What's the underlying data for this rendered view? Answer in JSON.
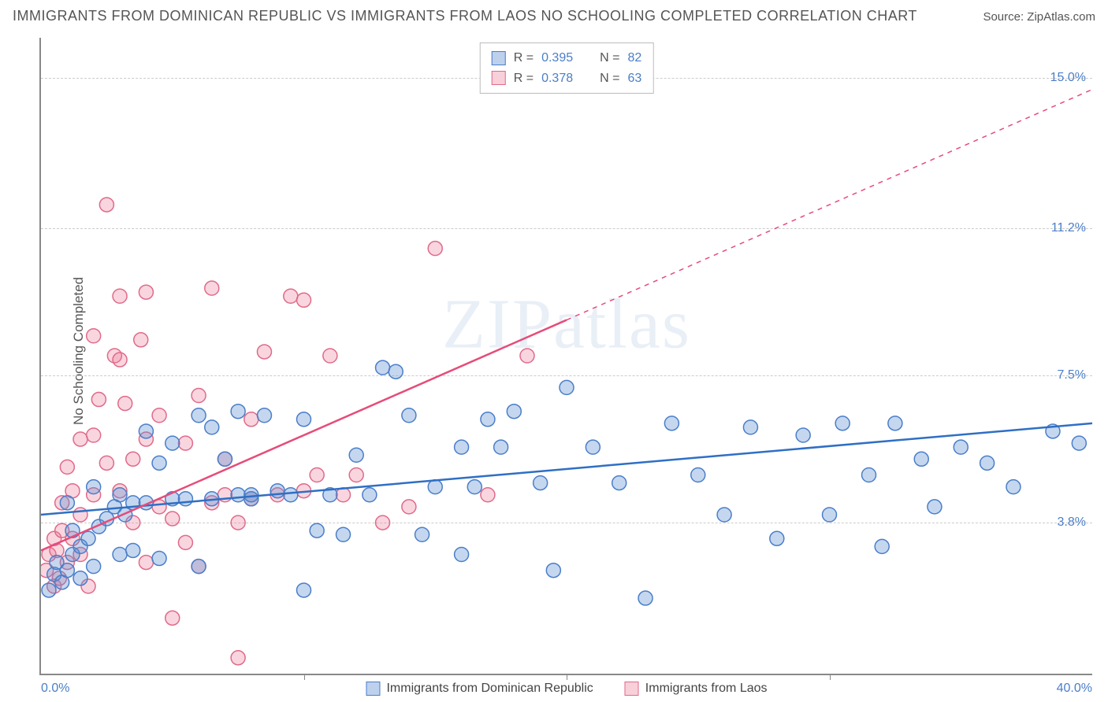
{
  "title": "IMMIGRANTS FROM DOMINICAN REPUBLIC VS IMMIGRANTS FROM LAOS NO SCHOOLING COMPLETED CORRELATION CHART",
  "source": "Source: ZipAtlas.com",
  "ylabel": "No Schooling Completed",
  "watermark": "ZIPatlas",
  "chart": {
    "type": "scatter",
    "xlim": [
      0,
      40
    ],
    "ylim": [
      0,
      16
    ],
    "x_min_label": "0.0%",
    "x_max_label": "40.0%",
    "yticks": [
      {
        "value": 3.8,
        "label": "3.8%"
      },
      {
        "value": 7.5,
        "label": "7.5%"
      },
      {
        "value": 11.2,
        "label": "11.2%"
      },
      {
        "value": 15.0,
        "label": "15.0%"
      }
    ],
    "xtick_marks": [
      10,
      20,
      30
    ],
    "background_color": "#ffffff",
    "grid_color": "#cccccc",
    "axis_color": "#888888",
    "marker_radius": 9,
    "marker_stroke_width": 1.5,
    "line_width": 2.5,
    "series": [
      {
        "name": "Immigrants from Dominican Republic",
        "color_fill": "rgba(90,140,210,0.35)",
        "color_stroke": "#4a7ec9",
        "line_color": "#2f6fc4",
        "R": "0.395",
        "N": "82",
        "regression": {
          "x1": 0,
          "y1": 4.0,
          "x2": 40,
          "y2": 6.3
        },
        "dashed_extension": null,
        "points": [
          [
            0.3,
            2.1
          ],
          [
            0.5,
            2.5
          ],
          [
            0.6,
            2.8
          ],
          [
            0.8,
            2.3
          ],
          [
            1.0,
            2.6
          ],
          [
            1.0,
            4.3
          ],
          [
            1.2,
            3.0
          ],
          [
            1.2,
            3.6
          ],
          [
            1.5,
            2.4
          ],
          [
            1.5,
            3.2
          ],
          [
            1.8,
            3.4
          ],
          [
            2.0,
            4.7
          ],
          [
            2.0,
            2.7
          ],
          [
            2.2,
            3.7
          ],
          [
            2.5,
            3.9
          ],
          [
            2.8,
            4.2
          ],
          [
            3.0,
            4.5
          ],
          [
            3.0,
            3.0
          ],
          [
            3.2,
            4.0
          ],
          [
            3.5,
            3.1
          ],
          [
            3.5,
            4.3
          ],
          [
            4.0,
            6.1
          ],
          [
            4.0,
            4.3
          ],
          [
            4.5,
            5.3
          ],
          [
            4.5,
            2.9
          ],
          [
            5.0,
            4.4
          ],
          [
            5.0,
            5.8
          ],
          [
            5.5,
            4.4
          ],
          [
            6.0,
            2.7
          ],
          [
            6.0,
            6.5
          ],
          [
            6.5,
            6.2
          ],
          [
            6.5,
            4.4
          ],
          [
            7.0,
            5.4
          ],
          [
            7.5,
            4.5
          ],
          [
            7.5,
            6.6
          ],
          [
            8.0,
            4.4
          ],
          [
            8.0,
            4.5
          ],
          [
            8.5,
            6.5
          ],
          [
            9.0,
            4.6
          ],
          [
            9.5,
            4.5
          ],
          [
            10.0,
            6.4
          ],
          [
            10.0,
            2.1
          ],
          [
            10.5,
            3.6
          ],
          [
            11.0,
            4.5
          ],
          [
            11.5,
            3.5
          ],
          [
            12.0,
            5.5
          ],
          [
            12.5,
            4.5
          ],
          [
            13.0,
            7.7
          ],
          [
            13.5,
            7.6
          ],
          [
            14.0,
            6.5
          ],
          [
            14.5,
            3.5
          ],
          [
            15.0,
            4.7
          ],
          [
            16.0,
            5.7
          ],
          [
            16.0,
            3.0
          ],
          [
            16.5,
            4.7
          ],
          [
            17.0,
            6.4
          ],
          [
            17.5,
            5.7
          ],
          [
            18.0,
            6.6
          ],
          [
            19.0,
            4.8
          ],
          [
            19.5,
            2.6
          ],
          [
            20.0,
            7.2
          ],
          [
            21.0,
            5.7
          ],
          [
            22.0,
            4.8
          ],
          [
            23.0,
            1.9
          ],
          [
            24.0,
            6.3
          ],
          [
            25.0,
            5.0
          ],
          [
            26.0,
            4.0
          ],
          [
            27.0,
            6.2
          ],
          [
            28.0,
            3.4
          ],
          [
            29.0,
            6.0
          ],
          [
            30.0,
            4.0
          ],
          [
            30.5,
            6.3
          ],
          [
            31.5,
            5.0
          ],
          [
            32.0,
            3.2
          ],
          [
            32.5,
            6.3
          ],
          [
            33.5,
            5.4
          ],
          [
            34.0,
            4.2
          ],
          [
            35.0,
            5.7
          ],
          [
            36.0,
            5.3
          ],
          [
            37.0,
            4.7
          ],
          [
            38.5,
            6.1
          ],
          [
            39.5,
            5.8
          ]
        ]
      },
      {
        "name": "Immigrants from Laos",
        "color_fill": "rgba(235,120,150,0.30)",
        "color_stroke": "#e06a8a",
        "line_color": "#e64c7a",
        "R": "0.378",
        "N": "63",
        "regression": {
          "x1": 0,
          "y1": 3.1,
          "x2": 20,
          "y2": 8.9
        },
        "dashed_extension": {
          "x1": 20,
          "y1": 8.9,
          "x2": 40,
          "y2": 14.7
        },
        "points": [
          [
            0.2,
            2.6
          ],
          [
            0.3,
            3.0
          ],
          [
            0.5,
            2.2
          ],
          [
            0.5,
            3.4
          ],
          [
            0.6,
            3.1
          ],
          [
            0.7,
            2.4
          ],
          [
            0.8,
            4.3
          ],
          [
            0.8,
            3.6
          ],
          [
            1.0,
            5.2
          ],
          [
            1.0,
            2.8
          ],
          [
            1.2,
            4.6
          ],
          [
            1.2,
            3.4
          ],
          [
            1.5,
            5.9
          ],
          [
            1.5,
            4.0
          ],
          [
            1.5,
            3.0
          ],
          [
            1.8,
            2.2
          ],
          [
            2.0,
            6.0
          ],
          [
            2.0,
            8.5
          ],
          [
            2.0,
            4.5
          ],
          [
            2.2,
            6.9
          ],
          [
            2.5,
            11.8
          ],
          [
            2.5,
            5.3
          ],
          [
            2.8,
            8.0
          ],
          [
            3.0,
            9.5
          ],
          [
            3.0,
            4.6
          ],
          [
            3.0,
            7.9
          ],
          [
            3.2,
            6.8
          ],
          [
            3.5,
            5.4
          ],
          [
            3.5,
            3.8
          ],
          [
            3.8,
            8.4
          ],
          [
            4.0,
            5.9
          ],
          [
            4.0,
            9.6
          ],
          [
            4.0,
            2.8
          ],
          [
            4.5,
            6.5
          ],
          [
            4.5,
            4.2
          ],
          [
            5.0,
            3.9
          ],
          [
            5.0,
            1.4
          ],
          [
            5.5,
            5.8
          ],
          [
            5.5,
            3.3
          ],
          [
            6.0,
            2.7
          ],
          [
            6.0,
            7.0
          ],
          [
            6.5,
            4.3
          ],
          [
            6.5,
            9.7
          ],
          [
            7.0,
            4.5
          ],
          [
            7.0,
            5.4
          ],
          [
            7.5,
            3.8
          ],
          [
            7.5,
            0.4
          ],
          [
            8.0,
            4.4
          ],
          [
            8.0,
            6.4
          ],
          [
            8.5,
            8.1
          ],
          [
            9.0,
            4.5
          ],
          [
            9.5,
            9.5
          ],
          [
            10.0,
            4.6
          ],
          [
            10.0,
            9.4
          ],
          [
            10.5,
            5.0
          ],
          [
            11.0,
            8.0
          ],
          [
            11.5,
            4.5
          ],
          [
            12.0,
            5.0
          ],
          [
            13.0,
            3.8
          ],
          [
            14.0,
            4.2
          ],
          [
            15.0,
            10.7
          ],
          [
            17.0,
            4.5
          ],
          [
            18.5,
            8.0
          ]
        ]
      }
    ]
  },
  "bottom_legend": [
    {
      "swatch": "blue",
      "label_key": "chart.series.0.name"
    },
    {
      "swatch": "pink",
      "label_key": "chart.series.1.name"
    }
  ]
}
